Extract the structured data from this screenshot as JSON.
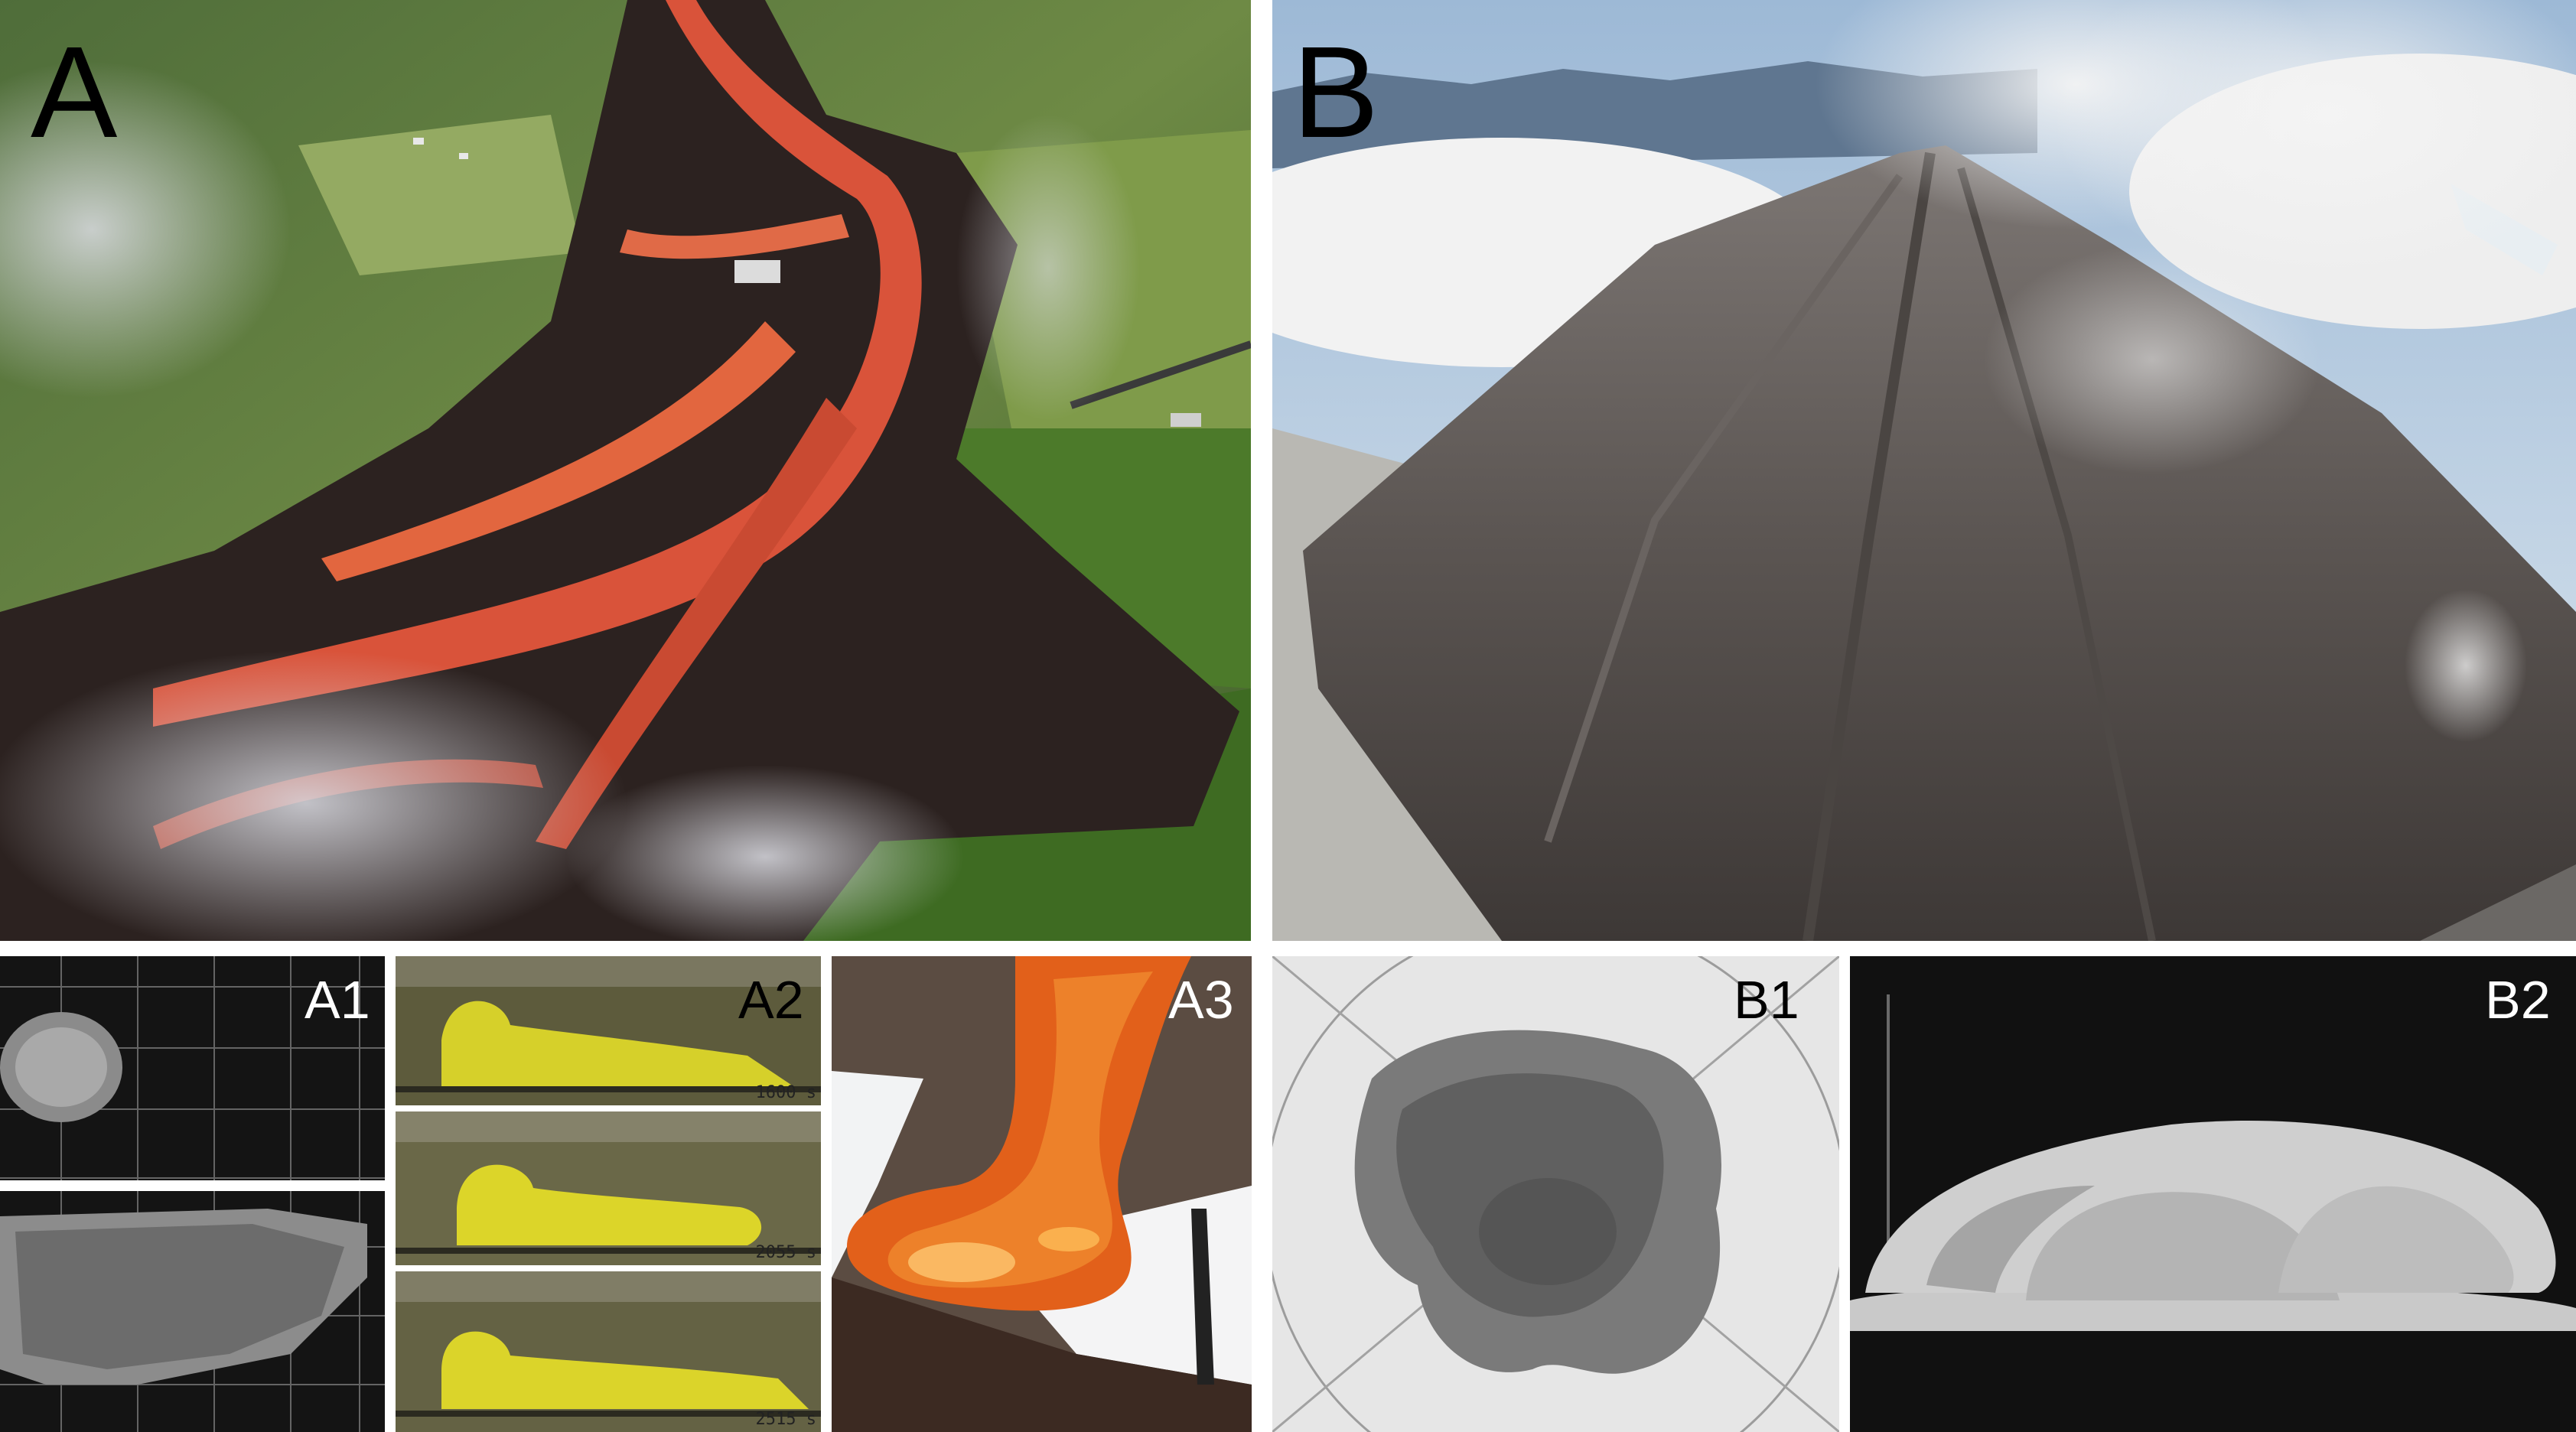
{
  "figure": {
    "panels": {
      "A": {
        "label": "A",
        "scene": "aerial lava flow through forest"
      },
      "B": {
        "label": "B",
        "scene": "steaming volcanic dome over clouds"
      },
      "A1": {
        "label": "A1"
      },
      "A2": {
        "label": "A2",
        "timestamps": [
          "1600 s",
          "2055 s",
          "2515 s"
        ]
      },
      "A3": {
        "label": "A3"
      },
      "B1": {
        "label": "B1"
      },
      "B2": {
        "label": "B2"
      }
    }
  },
  "colors": {
    "lava": "#e0553a",
    "crust": "#2a1f1d",
    "vegetation": "#5c7a34",
    "syrup": "#d8d22a",
    "molten_glass": "#e8631a"
  }
}
